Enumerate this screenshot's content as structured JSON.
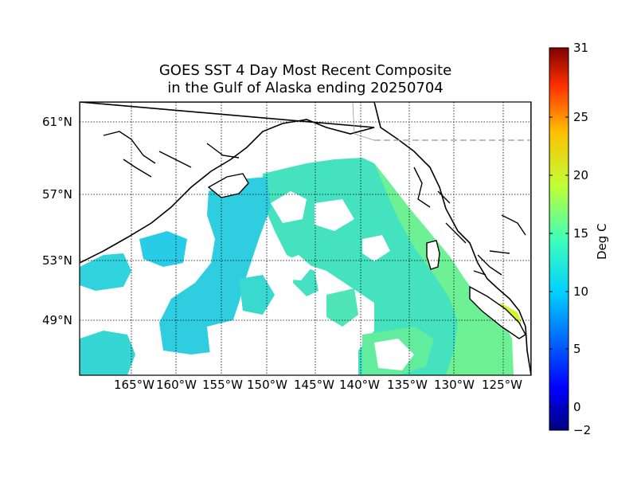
{
  "title": {
    "line1": "GOES SST 4 Day Most Recent Composite",
    "line2": "in the Gulf of Alaska ending 20250704"
  },
  "lat_labels": [
    "61°N",
    "57°N",
    "53°N",
    "49°N"
  ],
  "lon_labels": [
    "165°W",
    "160°W",
    "155°W",
    "150°W",
    "145°W",
    "140°W",
    "135°W",
    "130°W",
    "125°W"
  ],
  "colorbar": {
    "label": "Deg C",
    "ticks": [
      "31",
      "25",
      "20",
      "15",
      "10",
      "5",
      "0",
      "−2"
    ],
    "min": -2,
    "max": 31,
    "colormap": "jet"
  },
  "colors": {
    "land": "#ffffff",
    "coastline": "#000000",
    "sst_cool": "#22c8ee",
    "sst_mid": "#3fe0c8",
    "sst_warm": "#9af25a"
  }
}
